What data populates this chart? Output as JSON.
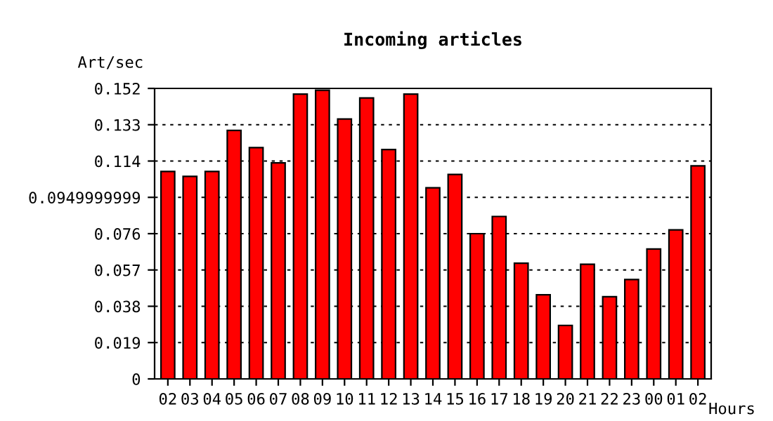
{
  "chart_data": {
    "type": "bar",
    "title": "Incoming articles",
    "ylabel": "Art/sec",
    "xlabel": "Hours",
    "categories": [
      "02",
      "03",
      "04",
      "05",
      "06",
      "07",
      "08",
      "09",
      "10",
      "11",
      "12",
      "13",
      "14",
      "15",
      "16",
      "17",
      "18",
      "19",
      "20",
      "21",
      "22",
      "23",
      "00",
      "01",
      "02"
    ],
    "values": [
      0.1085,
      0.106,
      0.1085,
      0.13,
      0.121,
      0.113,
      0.149,
      0.151,
      0.136,
      0.147,
      0.12,
      0.149,
      0.1,
      0.107,
      0.076,
      0.085,
      0.0605,
      0.044,
      0.028,
      0.06,
      0.043,
      0.052,
      0.068,
      0.078,
      0.1115
    ],
    "color": "#ff0000",
    "ylim": [
      0,
      0.152
    ],
    "yticks": [
      0,
      0.019,
      0.038,
      0.057,
      0.076,
      0.0949999999,
      0.114,
      0.133,
      0.152
    ],
    "grid": "y"
  }
}
